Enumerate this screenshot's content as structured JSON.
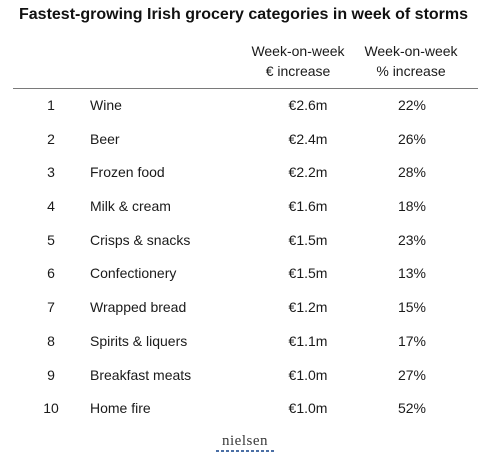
{
  "chart_data": {
    "type": "table",
    "title": "Fastest-growing Irish grocery categories in week of storms",
    "columns": [
      "Week-on-week € increase",
      "Week-on-week % increase"
    ],
    "column_headers": [
      [
        "Week-on-week",
        "€ increase"
      ],
      [
        "Week-on-week",
        "% increase"
      ]
    ],
    "rows": [
      {
        "rank": "1",
        "category": "Wine",
        "eur_increase": "€2.6m",
        "pct_increase": "22%"
      },
      {
        "rank": "2",
        "category": "Beer",
        "eur_increase": "€2.4m",
        "pct_increase": "26%"
      },
      {
        "rank": "3",
        "category": "Frozen food",
        "eur_increase": "€2.2m",
        "pct_increase": "28%"
      },
      {
        "rank": "4",
        "category": "Milk & cream",
        "eur_increase": "€1.6m",
        "pct_increase": "18%"
      },
      {
        "rank": "5",
        "category": "Crisps & snacks",
        "eur_increase": "€1.5m",
        "pct_increase": "23%"
      },
      {
        "rank": "6",
        "category": "Confectionery",
        "eur_increase": "€1.5m",
        "pct_increase": "13%"
      },
      {
        "rank": "7",
        "category": "Wrapped bread",
        "eur_increase": "€1.2m",
        "pct_increase": "15%"
      },
      {
        "rank": "8",
        "category": "Spirits & liquers",
        "eur_increase": "€1.1m",
        "pct_increase": "17%"
      },
      {
        "rank": "9",
        "category": "Breakfast meats",
        "eur_increase": "€1.0m",
        "pct_increase": "27%"
      },
      {
        "rank": "10",
        "category": "Home fire",
        "eur_increase": "€1.0m",
        "pct_increase": "52%"
      }
    ]
  },
  "source_logo": "nielsen",
  "colors": {
    "text": "#1a1a1a",
    "rule": "#7a7a7a",
    "logo_accent": "#4a6fa5"
  }
}
